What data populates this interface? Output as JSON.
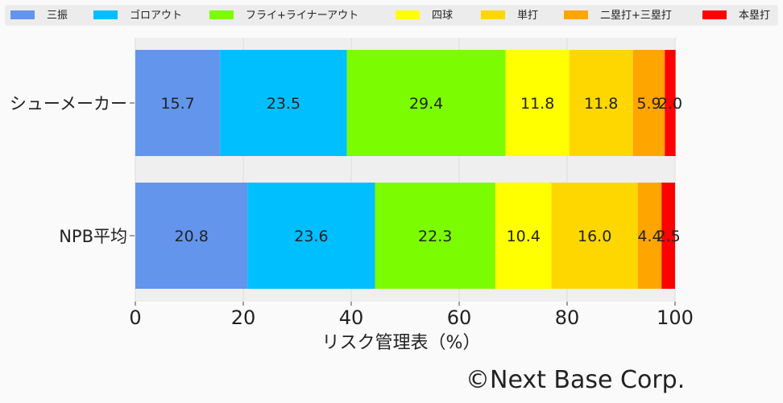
{
  "chart_data": {
    "type": "bar",
    "orientation": "horizontal",
    "stacked": true,
    "categories": [
      "シューメーカー",
      "NPB平均"
    ],
    "series": [
      {
        "name": "三振",
        "color": "#6495ED",
        "values": [
          15.7,
          20.8
        ],
        "labels": [
          "15.7",
          "20.8"
        ]
      },
      {
        "name": "ゴロアウト",
        "color": "#00BFFF",
        "values": [
          23.5,
          23.6
        ],
        "labels": [
          "23.5",
          "23.6"
        ]
      },
      {
        "name": "フライ+ライナーアウト",
        "color": "#7CFC00",
        "values": [
          29.4,
          22.3
        ],
        "labels": [
          "29.4",
          "22.3"
        ]
      },
      {
        "name": "四球",
        "color": "#FFFF00",
        "values": [
          11.8,
          10.4
        ],
        "labels": [
          "11.8",
          "10.4"
        ]
      },
      {
        "name": "単打",
        "color": "#FFD700",
        "values": [
          11.8,
          16.0
        ],
        "labels": [
          "11.8",
          "16.0"
        ]
      },
      {
        "name": "二塁打+三塁打",
        "color": "#FFA500",
        "values": [
          5.9,
          4.4
        ],
        "labels": [
          "5.9",
          "4.4"
        ]
      },
      {
        "name": "本塁打",
        "color": "#FF0000",
        "values": [
          2.0,
          2.5
        ],
        "labels": [
          "2.0",
          "2.5"
        ]
      }
    ],
    "xlabel": "リスク管理表（%）",
    "ylabel": "",
    "xlim": [
      0,
      100
    ],
    "xticks": [
      "0",
      "20",
      "40",
      "60",
      "80",
      "100"
    ],
    "grid": true,
    "legend_position": "top"
  },
  "footer": {
    "copyright": "©Next Base Corp."
  }
}
